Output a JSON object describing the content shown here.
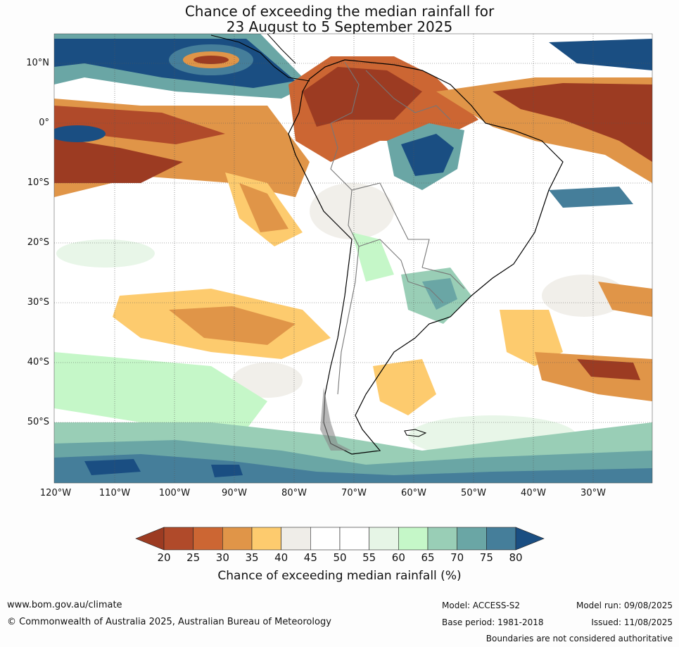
{
  "title_line1": "Chance of exceeding the median rainfall for",
  "title_line2": "23 August to 5 September 2025",
  "lat_labels": [
    "10°N",
    "0°",
    "10°S",
    "20°S",
    "30°S",
    "40°S",
    "50°S"
  ],
  "lon_labels": [
    "120°W",
    "110°W",
    "100°W",
    "90°W",
    "80°W",
    "70°W",
    "60°W",
    "50°W",
    "40°W",
    "30°W"
  ],
  "legend": {
    "ticks": [
      "20",
      "25",
      "30",
      "35",
      "40",
      "45",
      "50",
      "55",
      "60",
      "65",
      "70",
      "75",
      "80"
    ],
    "colors": [
      "#9c3b22",
      "#b04a2a",
      "#cc6633",
      "#e09548",
      "#fdcb6e",
      "#efede8",
      "#ffffff",
      "#ffffff",
      "#e6f5e6",
      "#c5f7c8",
      "#99ceb6",
      "#6aa6a5",
      "#457e9a",
      "#1a4e82"
    ],
    "label": "Chance of exceeding median rainfall (%)"
  },
  "footer": {
    "website": "www.bom.gov.au/climate",
    "copyright": "© Commonwealth of Australia 2025, Australian Bureau of Meteorology",
    "model": "Model: ACCESS-S2",
    "base_period": "Base period: 1981-2018",
    "model_run": "Model run: 09/08/2025",
    "issued": "Issued: 11/08/2025",
    "disclaimer": "Boundaries are not considered authoritative"
  }
}
